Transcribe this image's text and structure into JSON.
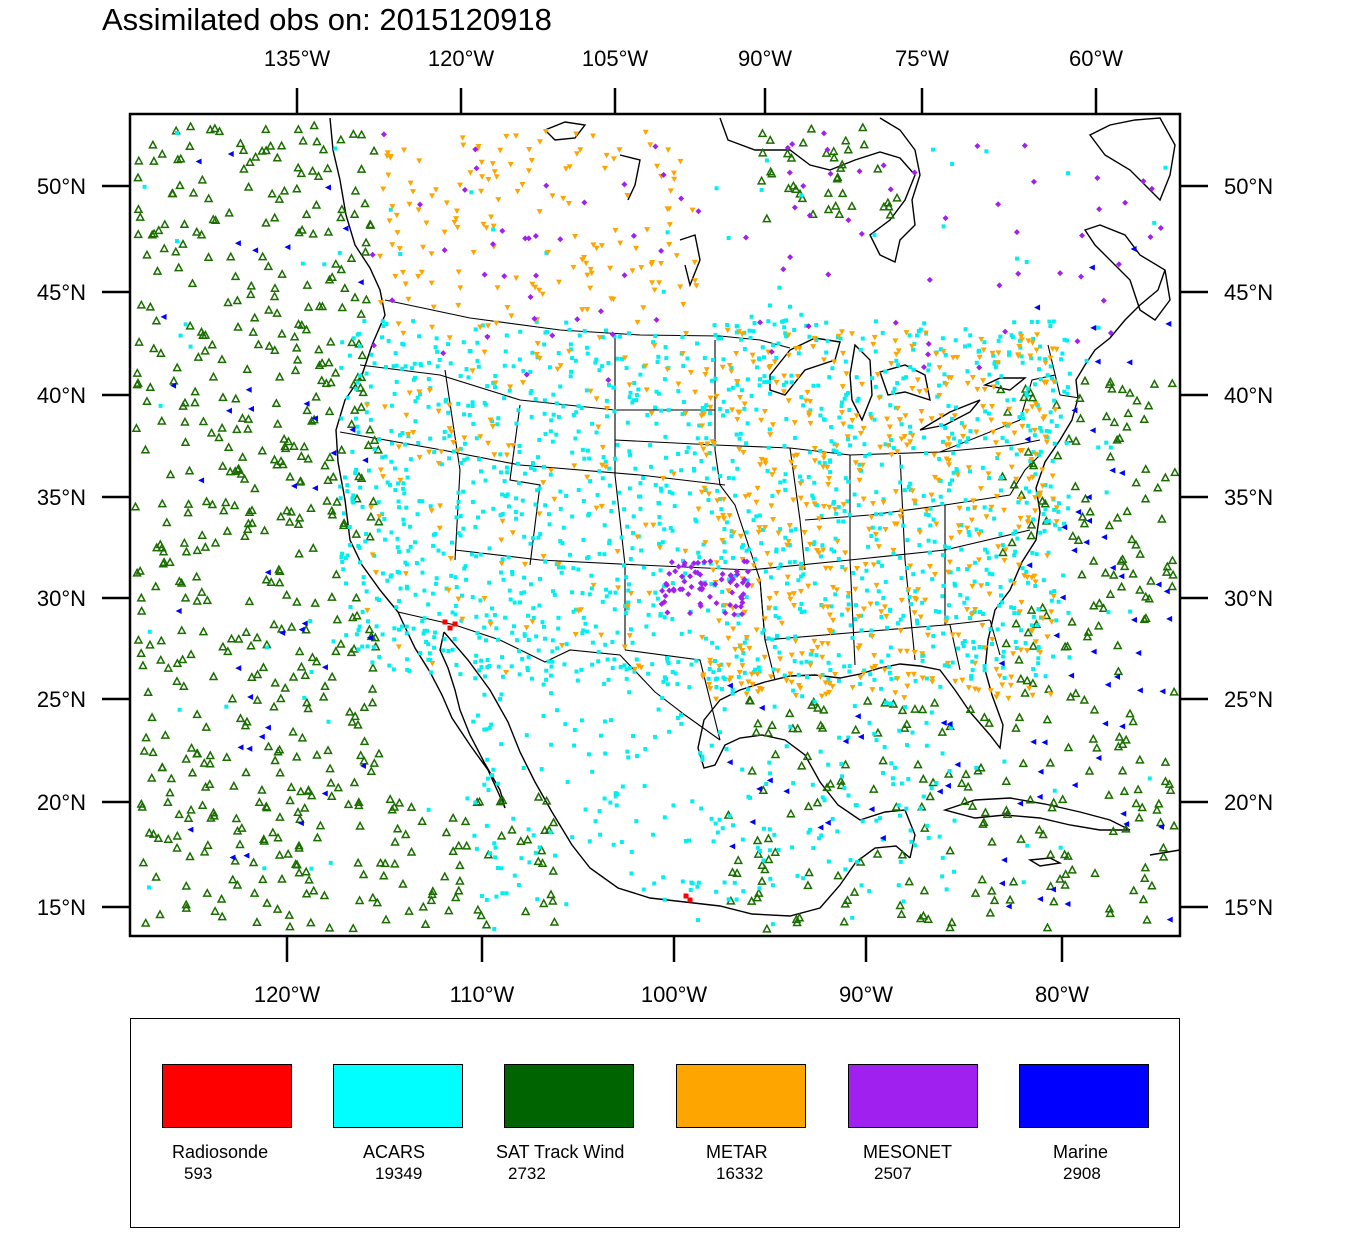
{
  "title": "Assimilated obs on: 2015120918",
  "map": {
    "top_lon_labels": [
      "135°W",
      "120°W",
      "105°W",
      "90°W",
      "75°W",
      "60°W"
    ],
    "bottom_lon_labels": [
      "120°W",
      "110°W",
      "100°W",
      "90°W",
      "80°W"
    ],
    "lat_labels": [
      "50°N",
      "45°N",
      "40°N",
      "35°N",
      "30°N",
      "25°N",
      "20°N",
      "15°N"
    ],
    "region": "Contiguous United States, Gulf of Mexico, eastern Pacific and western Atlantic"
  },
  "legend": [
    {
      "label": "Radiosonde",
      "count": "593",
      "color": "#ff0000"
    },
    {
      "label": "ACARS",
      "count": "19349",
      "color": "#00ffff"
    },
    {
      "label": "SAT Track Wind",
      "count": "2732",
      "color": "#006400"
    },
    {
      "label": "METAR",
      "count": "16332",
      "color": "#ffa500"
    },
    {
      "label": "MESONET",
      "count": "2507",
      "color": "#a020f0"
    },
    {
      "label": "Marine",
      "count": "2908",
      "color": "#0000ff"
    }
  ]
}
